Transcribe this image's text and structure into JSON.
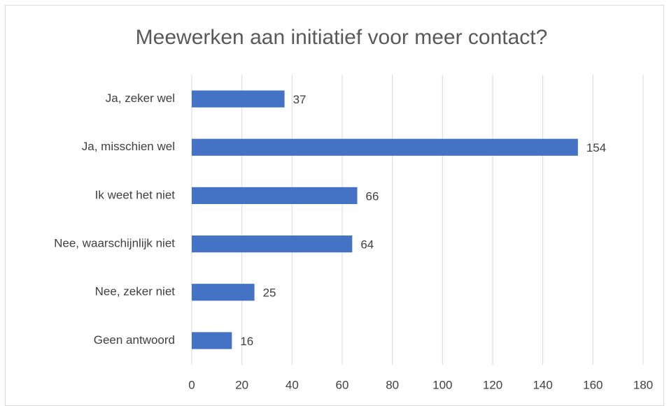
{
  "chart_data": {
    "type": "hbar",
    "title": "Meewerken aan initiatief voor meer contact?",
    "categories": [
      "Ja, zeker wel",
      "Ja, misschien wel",
      "Ik weet het niet",
      "Nee, waarschijnlijk niet",
      "Nee, zeker niet",
      "Geen antwoord"
    ],
    "values": [
      37,
      154,
      66,
      64,
      25,
      16
    ],
    "color": "#4472c4",
    "xlim": [
      0,
      180
    ],
    "xticks": [
      0,
      20,
      40,
      60,
      80,
      100,
      120,
      140,
      160,
      180
    ],
    "grid": true
  }
}
